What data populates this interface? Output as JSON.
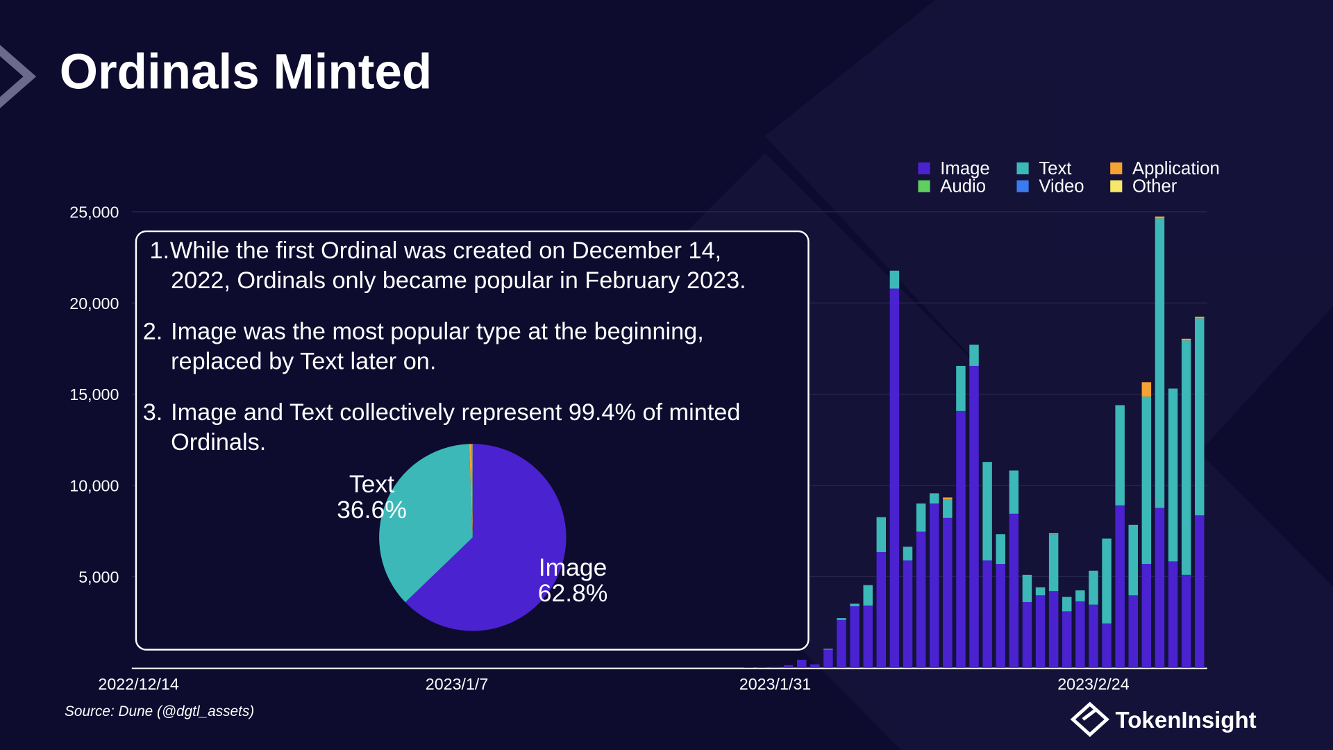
{
  "title": "Ordinals Minted",
  "notes": [
    {
      "marker": "1.",
      "lines": [
        "While the first Ordinal was created on December 14,",
        "2022, Ordinals only became popular in February 2023."
      ]
    },
    {
      "marker": "2.",
      "lines": [
        "Image was the most popular type at the beginning,",
        "replaced by Text later on."
      ]
    },
    {
      "marker": "3.",
      "lines": [
        "Image and Text collectively represent 99.4% of minted",
        "Ordinals."
      ]
    }
  ],
  "source": "Source: Dune (@dgtl_assets)",
  "brand": "TokenInsight",
  "chart_data": [
    {
      "type": "bar",
      "stacked": true,
      "grid": true,
      "categories": [
        "2022/12/14",
        null,
        null,
        null,
        null,
        null,
        null,
        null,
        null,
        null,
        null,
        null,
        null,
        null,
        null,
        null,
        null,
        null,
        null,
        null,
        null,
        null,
        null,
        null,
        "2023/1/7",
        null,
        null,
        null,
        null,
        null,
        null,
        null,
        null,
        null,
        null,
        null,
        null,
        null,
        null,
        null,
        null,
        null,
        null,
        null,
        null,
        null,
        null,
        null,
        "2023/1/31",
        null,
        null,
        null,
        null,
        null,
        null,
        null,
        null,
        null,
        null,
        null,
        null,
        null,
        null,
        null,
        null,
        null,
        null,
        null,
        null,
        null,
        null,
        null,
        "2023/2/24",
        null,
        null,
        null,
        null,
        null,
        null,
        null,
        null
      ],
      "ylim": [
        0,
        25000
      ],
      "yticks": [
        {
          "value": 5000,
          "label": "5,000"
        },
        {
          "value": 10000,
          "label": "10,000"
        },
        {
          "value": 15000,
          "label": "15,000"
        },
        {
          "value": 20000,
          "label": "20,000"
        },
        {
          "value": 25000,
          "label": "25,000"
        }
      ],
      "series": [
        {
          "name": "Image",
          "color": "#4a22d0",
          "values": [
            0,
            0,
            0,
            0,
            0,
            0,
            0,
            0,
            0,
            0,
            0,
            0,
            0,
            0,
            0,
            0,
            0,
            0,
            0,
            0,
            0,
            0,
            0,
            0,
            0,
            0,
            0,
            0,
            0,
            0,
            0,
            0,
            0,
            0,
            0,
            0,
            0,
            0,
            0,
            0,
            0,
            0,
            0,
            0,
            0,
            0,
            30,
            40,
            60,
            150,
            450,
            200,
            1000,
            2630,
            3380,
            3420,
            6350,
            20790,
            5890,
            7470,
            9010,
            8220,
            14080,
            16550,
            5890,
            5700,
            8450,
            3610,
            3980,
            4210,
            3100,
            3650,
            3470,
            2440,
            8910,
            3980,
            5700,
            8770,
            5840,
            5100,
            8360
          ]
        },
        {
          "name": "Text",
          "color": "#3cb8b8",
          "values": [
            0,
            0,
            0,
            0,
            0,
            0,
            0,
            0,
            0,
            0,
            0,
            0,
            0,
            0,
            0,
            0,
            0,
            0,
            0,
            0,
            0,
            0,
            0,
            0,
            0,
            0,
            0,
            0,
            0,
            0,
            0,
            0,
            0,
            0,
            0,
            0,
            0,
            0,
            0,
            0,
            0,
            0,
            0,
            0,
            0,
            0,
            0,
            0,
            0,
            0,
            0,
            0,
            50,
            100,
            140,
            1120,
            1910,
            980,
            750,
            1540,
            560,
            1020,
            2470,
            1160,
            5400,
            1630,
            2370,
            1490,
            440,
            3120,
            790,
            600,
            1860,
            4650,
            5490,
            3860,
            9170,
            15870,
            9470,
            12850,
            10800
          ]
        },
        {
          "name": "Application",
          "color": "#f4a234",
          "values": [
            0,
            0,
            0,
            0,
            0,
            0,
            0,
            0,
            0,
            0,
            0,
            0,
            0,
            0,
            0,
            0,
            0,
            0,
            0,
            0,
            0,
            0,
            0,
            0,
            0,
            0,
            0,
            0,
            0,
            0,
            0,
            0,
            0,
            0,
            0,
            0,
            0,
            0,
            0,
            0,
            0,
            0,
            0,
            0,
            0,
            0,
            0,
            0,
            0,
            0,
            0,
            0,
            0,
            0,
            0,
            0,
            0,
            0,
            0,
            0,
            0,
            100,
            0,
            0,
            0,
            0,
            0,
            0,
            0,
            50,
            0,
            0,
            0,
            0,
            0,
            0,
            790,
            100,
            0,
            90,
            90
          ]
        },
        {
          "name": "Audio",
          "color": "#5fcf5f",
          "values": [
            0,
            0,
            0,
            0,
            0,
            0,
            0,
            0,
            0,
            0,
            0,
            0,
            0,
            0,
            0,
            0,
            0,
            0,
            0,
            0,
            0,
            0,
            0,
            0,
            0,
            0,
            0,
            0,
            0,
            0,
            0,
            0,
            0,
            0,
            0,
            0,
            0,
            0,
            0,
            0,
            0,
            0,
            0,
            0,
            0,
            0,
            0,
            0,
            0,
            0,
            0,
            0,
            0,
            0,
            0,
            0,
            0,
            0,
            0,
            0,
            0,
            0,
            0,
            0,
            0,
            0,
            0,
            0,
            0,
            0,
            0,
            0,
            0,
            0,
            0,
            0,
            0,
            0,
            0,
            0,
            0
          ]
        },
        {
          "name": "Video",
          "color": "#3a7cf0",
          "values": [
            0,
            0,
            0,
            0,
            0,
            0,
            0,
            0,
            0,
            0,
            0,
            0,
            0,
            0,
            0,
            0,
            0,
            0,
            0,
            0,
            0,
            0,
            0,
            0,
            0,
            0,
            0,
            0,
            0,
            0,
            0,
            0,
            0,
            0,
            0,
            0,
            0,
            0,
            0,
            0,
            0,
            0,
            0,
            0,
            0,
            0,
            0,
            0,
            0,
            0,
            0,
            0,
            0,
            0,
            0,
            0,
            0,
            0,
            0,
            0,
            0,
            0,
            0,
            0,
            0,
            0,
            0,
            0,
            0,
            0,
            0,
            0,
            0,
            0,
            0,
            0,
            0,
            0,
            0,
            0,
            0
          ]
        },
        {
          "name": "Other",
          "color": "#f5e86a",
          "values": [
            0,
            0,
            0,
            0,
            0,
            0,
            0,
            0,
            0,
            0,
            0,
            0,
            0,
            0,
            0,
            0,
            0,
            0,
            0,
            0,
            0,
            0,
            0,
            0,
            0,
            0,
            0,
            0,
            0,
            0,
            0,
            0,
            0,
            0,
            0,
            0,
            0,
            0,
            0,
            0,
            0,
            0,
            0,
            0,
            0,
            0,
            0,
            0,
            0,
            0,
            0,
            0,
            0,
            0,
            0,
            0,
            0,
            0,
            0,
            0,
            0,
            0,
            0,
            0,
            0,
            0,
            0,
            0,
            0,
            0,
            0,
            0,
            0,
            0,
            0,
            0,
            0,
            0,
            0,
            0,
            0
          ]
        }
      ]
    },
    {
      "type": "pie",
      "categories": [
        "Image",
        "Text",
        null,
        null,
        null,
        null
      ],
      "values": [
        62.8,
        36.6,
        0.4,
        0.1,
        0.05,
        0.05
      ],
      "value_labels": [
        "62.8%",
        "36.6%",
        null,
        null,
        null,
        null
      ],
      "colors": [
        "#4a22d0",
        "#3cb8b8",
        "#f4a234",
        "#5fcf5f",
        "#3a7cf0",
        "#f5e86a"
      ]
    }
  ]
}
